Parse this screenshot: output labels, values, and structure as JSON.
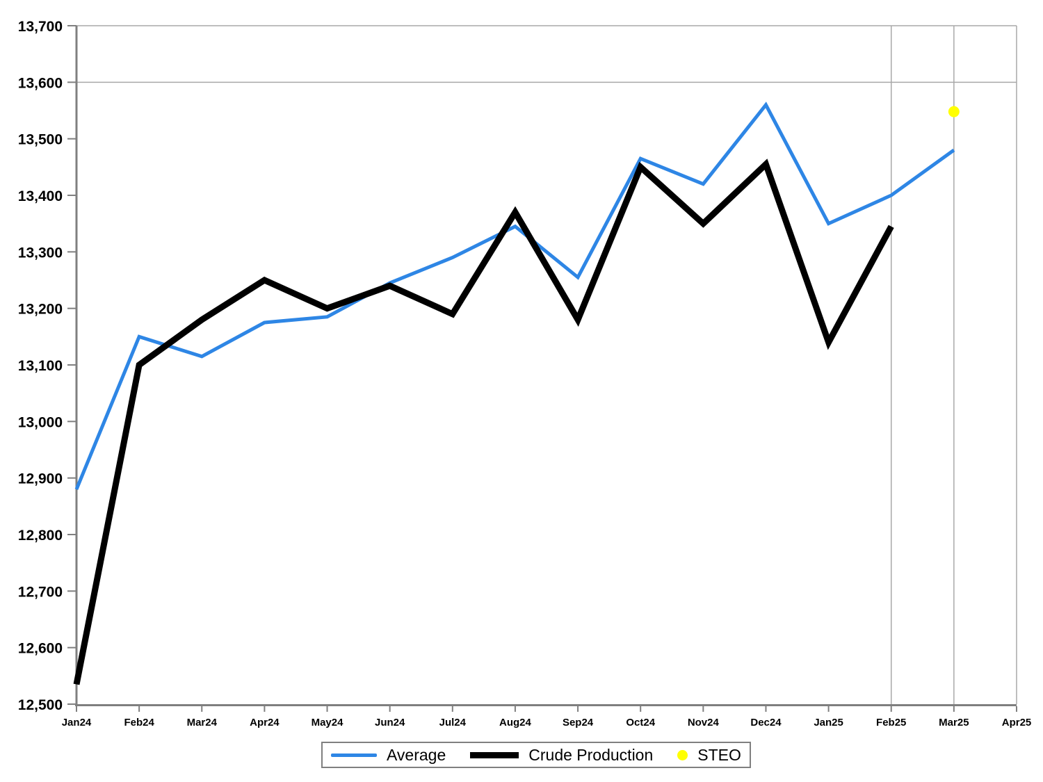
{
  "chart_data": {
    "type": "line",
    "title": "",
    "xlabel": "",
    "ylabel": "",
    "x_categories": [
      "Jan24",
      "Feb24",
      "Mar24",
      "Apr24",
      "May24",
      "Jun24",
      "Jul24",
      "Aug24",
      "Sep24",
      "Oct24",
      "Nov24",
      "Dec24",
      "Jan25",
      "Feb25",
      "Mar25",
      "Apr25"
    ],
    "y_axis": {
      "min": 12500,
      "max": 13700,
      "step": 100,
      "tick_format": "comma"
    },
    "gridlines": {
      "horizontal_values": [
        13600
      ],
      "vertical_months": [
        "Feb25",
        "Mar25"
      ],
      "grid_color": "#a8a8a8",
      "axis_color": "#7f7f7f"
    },
    "legend_position": "bottom",
    "series": [
      {
        "name": "Average",
        "type": "line",
        "color": "#2e86e5",
        "stroke_width": 5,
        "values": [
          12880,
          13150,
          13115,
          13175,
          13185,
          13245,
          13290,
          13345,
          13255,
          13465,
          13420,
          13560,
          13350,
          13400,
          13480
        ]
      },
      {
        "name": "Crude Production",
        "type": "line",
        "color": "#000000",
        "stroke_width": 9,
        "values": [
          12535,
          13100,
          13180,
          13250,
          13200,
          13240,
          13190,
          13370,
          13180,
          13450,
          13350,
          13455,
          13140,
          13345
        ]
      },
      {
        "name": "STEO",
        "type": "point",
        "color": "#ffff00",
        "point_radius": 8,
        "points": [
          {
            "month": "Mar25",
            "value": 13548
          }
        ]
      }
    ]
  }
}
